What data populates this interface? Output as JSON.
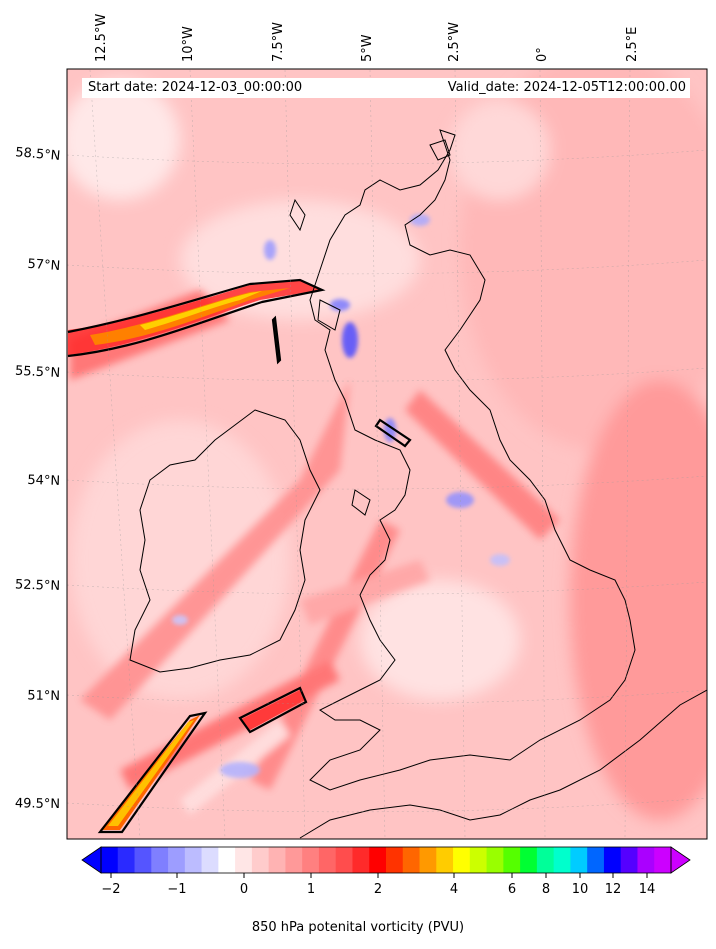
{
  "map": {
    "start_date_label": "Start date: 2024-12-03_00:00:00",
    "valid_date_label": "Valid_date: 2024-12-05T12:00:00.00",
    "field": "850 hPa potenital vorticity (PVU)",
    "region": "British Isles",
    "lon_ticks": [
      "12.5°W",
      "10°W",
      "7.5°W",
      "5°W",
      "2.5°W",
      "0°",
      "2.5°E"
    ],
    "lat_ticks": [
      "58.5°N",
      "57°N",
      "55.5°N",
      "54°N",
      "52.5°N",
      "51°N",
      "49.5°N"
    ]
  },
  "colorbar": {
    "label": "850 hPa potenital vorticity (PVU)",
    "tick_labels": [
      "−2",
      "−1",
      "0",
      "1",
      "2",
      "4",
      "6",
      "8",
      "10",
      "12",
      "14"
    ],
    "colors": [
      "#0000ff",
      "#2a2aff",
      "#5555ff",
      "#7f7fff",
      "#9d9dff",
      "#bcbcff",
      "#dcdcff",
      "#ffffff",
      "#ffe6e6",
      "#ffcccc",
      "#ffb3b3",
      "#ff9999",
      "#ff8080",
      "#ff6666",
      "#ff4d4d",
      "#ff2a2a",
      "#ff0000",
      "#ff3300",
      "#ff6600",
      "#ff9900",
      "#ffcc00",
      "#ffff00",
      "#ccff00",
      "#99ff00",
      "#55ff00",
      "#00ff33",
      "#00ff99",
      "#00ffcc",
      "#00ccff",
      "#0066ff",
      "#0000ff",
      "#5500ff",
      "#aa00ff",
      "#cc00ff"
    ]
  }
}
